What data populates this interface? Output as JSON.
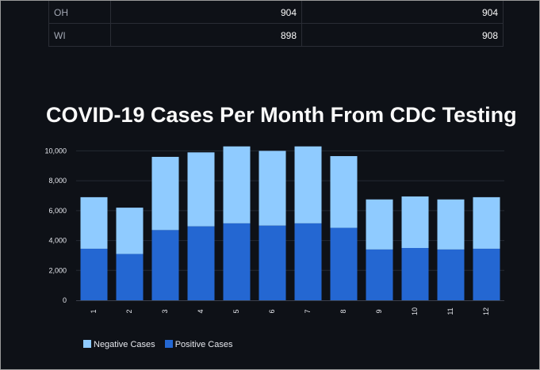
{
  "table": {
    "rows": [
      {
        "index": "OH",
        "c1": "904",
        "c2": "904"
      },
      {
        "index": "WI",
        "c1": "898",
        "c2": "908"
      }
    ]
  },
  "colors": {
    "negative": "#8fcbff",
    "positive": "#2467d2",
    "background": "#0e1117",
    "grid": "#252a33"
  },
  "chart_data": {
    "type": "bar",
    "stacked": true,
    "title": "COVID-19 Cases Per Month From CDC Testing",
    "xlabel": "",
    "ylabel": "",
    "categories": [
      "1",
      "2",
      "3",
      "4",
      "5",
      "6",
      "7",
      "8",
      "9",
      "10",
      "11",
      "12"
    ],
    "series": [
      {
        "name": "Positive Cases",
        "color": "#2467d2",
        "values": [
          3450,
          3100,
          4700,
          4950,
          5150,
          5000,
          5150,
          4850,
          3400,
          3500,
          3400,
          3450
        ]
      },
      {
        "name": "Negative Cases",
        "color": "#8fcbff",
        "values": [
          3450,
          3100,
          4900,
          4950,
          5150,
          5000,
          5150,
          4800,
          3350,
          3450,
          3350,
          3450
        ]
      }
    ],
    "ylim": [
      0,
      10500
    ],
    "yticks": [
      0,
      2000,
      4000,
      6000,
      8000,
      10000
    ],
    "ytick_labels": [
      "0",
      "2,000",
      "4,000",
      "6,000",
      "8,000",
      "10,000"
    ],
    "grid": true,
    "legend": {
      "position": "bottom-left",
      "entries": [
        "Negative Cases",
        "Positive Cases"
      ]
    }
  }
}
